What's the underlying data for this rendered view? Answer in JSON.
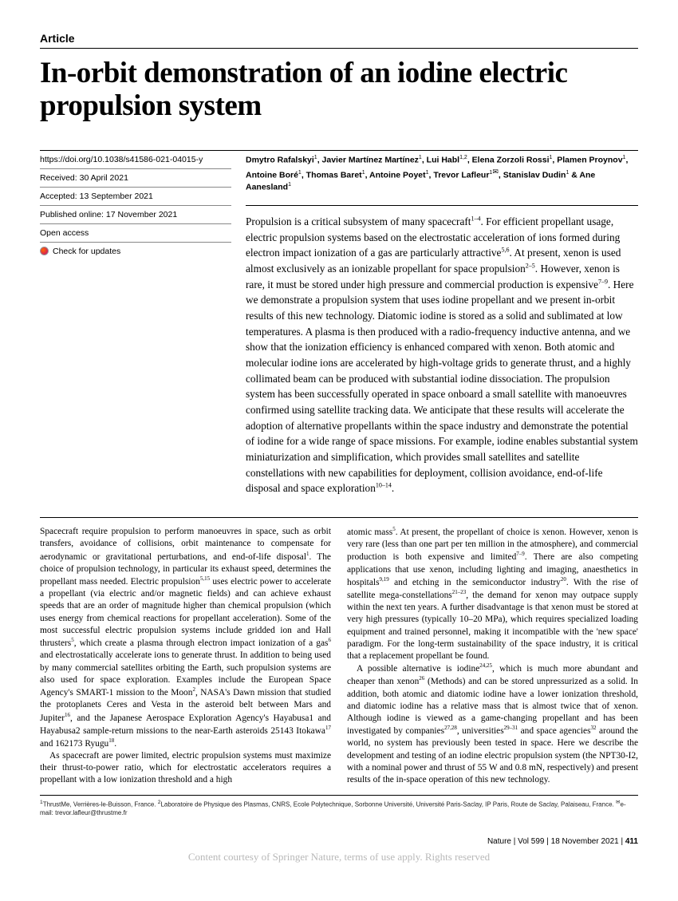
{
  "article_type": "Article",
  "title": "In-orbit demonstration of an iodine electric propulsion system",
  "meta": {
    "doi": "https://doi.org/10.1038/s41586-021-04015-y",
    "received": "Received: 30 April 2021",
    "accepted": "Accepted: 13 September 2021",
    "published": "Published online: 17 November 2021",
    "open_access": "Open access",
    "check_updates": "Check for updates"
  },
  "authors_html": "Dmytro Rafalskyi<sup>1</sup>, Javier Martínez Martínez<sup>1</sup>, Lui Habl<sup>1,2</sup>, Elena Zorzoli Rossi<sup>1</sup>, Plamen Proynov<sup>1</sup>, Antoine Boré<sup>1</sup>, Thomas Baret<sup>1</sup>, Antoine Poyet<sup>1</sup>, Trevor Lafleur<sup>1<span class='corr-icon'>✉</span></sup>, Stanislav Dudin<sup>1</sup> & Ane Aanesland<sup>1</sup>",
  "abstract": "Propulsion is a critical subsystem of many spacecraft<sup>1–4</sup>. For efficient propellant usage, electric propulsion systems based on the electrostatic acceleration of ions formed during electron impact ionization of a gas are particularly attractive<sup>5,6</sup>. At present, xenon is used almost exclusively as an ionizable propellant for space propulsion<sup>2–5</sup>. However, xenon is rare, it must be stored under high pressure and commercial production is expensive<sup>7–9</sup>. Here we demonstrate a propulsion system that uses iodine propellant and we present in-orbit results of this new technology. Diatomic iodine is stored as a solid and sublimated at low temperatures. A plasma is then produced with a radio-frequency inductive antenna, and we show that the ionization efficiency is enhanced compared with xenon. Both atomic and molecular iodine ions are accelerated by high-voltage grids to generate thrust, and a highly collimated beam can be produced with substantial iodine dissociation. The propulsion system has been successfully operated in space onboard a small satellite with manoeuvres confirmed using satellite tracking data. We anticipate that these results will accelerate the adoption of alternative propellants within the space industry and demonstrate the potential of iodine for a wide range of space missions. For example, iodine enables substantial system miniaturization and simplification, which provides small satellites and satellite constellations with new capabilities for deployment, collision avoidance, end-of-life disposal and space exploration<sup>10–14</sup>.",
  "body": {
    "col1_p1": "Spacecraft require propulsion to perform manoeuvres in space, such as orbit transfers, avoidance of collisions, orbit maintenance to compensate for aerodynamic or gravitational perturbations, and end-of-life disposal<sup>1</sup>. The choice of propulsion technology, in particular its exhaust speed, determines the propellant mass needed. Electric propulsion<sup>5,15</sup> uses electric power to accelerate a propellant (via electric and/or magnetic fields) and can achieve exhaust speeds that are an order of magnitude higher than chemical propulsion (which uses energy from chemical reactions for propellant acceleration). Some of the most successful electric propulsion systems include gridded ion and Hall thrusters<sup>5</sup>, which create a plasma through electron impact ionization of a gas<sup>6</sup> and electrostatically accelerate ions to generate thrust. In addition to being used by many commercial satellites orbiting the Earth, such propulsion systems are also used for space exploration. Examples include the European Space Agency's SMART-1 mission to the Moon<sup>2</sup>, NASA's Dawn mission that studied the protoplanets Ceres and Vesta in the asteroid belt between Mars and Jupiter<sup>16</sup>, and the Japanese Aerospace Exploration Agency's Hayabusa1 and Hayabusa2 sample-return missions to the near-Earth asteroids 25143 Itokawa<sup>17</sup> and 162173 Ryugu<sup>18</sup>.",
    "col1_p2": "As spacecraft are power limited, electric propulsion systems must maximize their thrust-to-power ratio, which for electrostatic accelerators requires a propellant with a low ionization threshold and a high",
    "col2_p1": "atomic mass<sup>5</sup>. At present, the propellant of choice is xenon. However, xenon is very rare (less than one part per ten million in the atmosphere), and commercial production is both expensive and limited<sup>7–9</sup>. There are also competing applications that use xenon, including lighting and imaging, anaesthetics in hospitals<sup>9,19</sup> and etching in the semiconductor industry<sup>20</sup>. With the rise of satellite mega-constellations<sup>21–23</sup>, the demand for xenon may outpace supply within the next ten years. A further disadvantage is that xenon must be stored at very high pressures (typically 10–20 MPa), which requires specialized loading equipment and trained personnel, making it incompatible with the 'new space' paradigm. For the long-term sustainability of the space industry, it is critical that a replacement propellant be found.",
    "col2_p2": "A possible alternative is iodine<sup>24,25</sup>, which is much more abundant and cheaper than xenon<sup>26</sup> (Methods) and can be stored unpressurized as a solid. In addition, both atomic and diatomic iodine have a lower ionization threshold, and diatomic iodine has a relative mass that is almost twice that of xenon. Although iodine is viewed as a game-changing propellant and has been investigated by companies<sup>27,28</sup>, universities<sup>29–31</sup> and space agencies<sup>32</sup> around the world, no system has previously been tested in space. Here we describe the development and testing of an iodine electric propulsion system (the NPT30-I2, with a nominal power and thrust of 55 W and 0.8 mN, respectively) and present results of the in-space operation of this new technology."
  },
  "affiliations": "<sup>1</sup>ThrustMe, Verrières-le-Buisson, France. <sup>2</sup>Laboratoire de Physique des Plasmas, CNRS, Ecole Polytechnique, Sorbonne Université, Université Paris-Saclay, IP Paris, Route de Saclay, Palaiseau, France. <sup>✉</sup>e-mail: trevor.lafleur@thrustme.fr",
  "footer": {
    "journal": "Nature | Vol 599 | 18 November 2021 | ",
    "page": "411"
  },
  "courtesy": "Content courtesy of Springer Nature, terms of use apply. Rights reserved"
}
